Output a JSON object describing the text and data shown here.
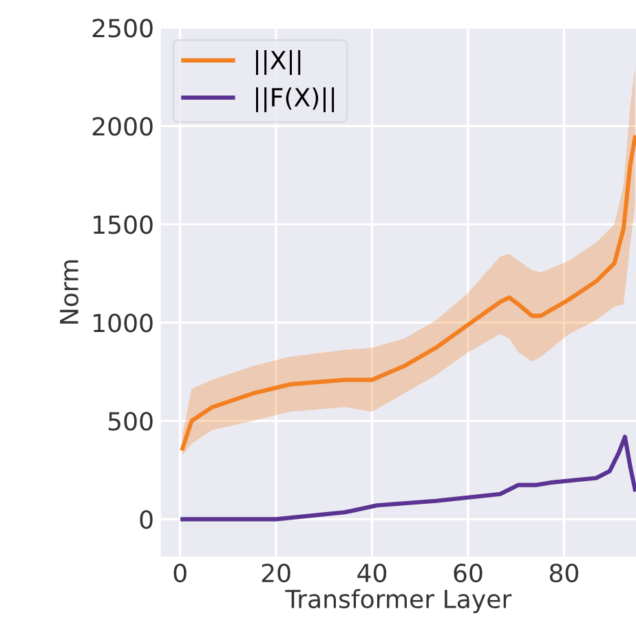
{
  "chart_data": {
    "type": "line",
    "xlabel": "Transformer Layer",
    "ylabel": "Norm",
    "xlim": [
      -4,
      95
    ],
    "xticks": [
      0,
      20,
      40,
      60,
      80
    ],
    "ylim": [
      -190,
      2500
    ],
    "yticks": [
      0,
      500,
      1000,
      1500,
      2000,
      2500
    ],
    "grid": true,
    "legend": "top left",
    "series": [
      {
        "name": "||X||",
        "color": "#f28022",
        "x": [
          0.5,
          2.4,
          6.7,
          15.2,
          22.9,
          34.3,
          40,
          46.7,
          53.3,
          60,
          66.7,
          68.6,
          70.5,
          73.3,
          75.2,
          81,
          86.7,
          90.5,
          92.4,
          93.8,
          94.8
        ],
        "values": [
          360,
          500,
          570,
          640,
          686,
          709,
          709,
          779,
          872,
          989,
          1105,
          1128,
          1093,
          1035,
          1035,
          1117,
          1210,
          1302,
          1477,
          1803,
          1942
        ],
        "lower": [
          326,
          384,
          454,
          500,
          547,
          570,
          547,
          640,
          733,
          849,
          942,
          919,
          849,
          802,
          826,
          942,
          1012,
          1082,
          1093,
          1400,
          1600
        ],
        "upper": [
          430,
          663,
          709,
          779,
          826,
          861,
          872,
          919,
          1012,
          1151,
          1337,
          1349,
          1314,
          1268,
          1256,
          1314,
          1407,
          1500,
          1700,
          2100,
          2300
        ]
      },
      {
        "name": "||F(X)||",
        "color": "#5b3393",
        "x": [
          0.5,
          20,
          34.3,
          41,
          53.3,
          66.7,
          70.5,
          74.3,
          77.1,
          81.9,
          86.7,
          89.5,
          91.4,
          92.7,
          93.8,
          94.8
        ],
        "values": [
          0,
          0,
          35,
          70,
          93,
          128,
          174,
          174,
          186,
          198,
          209,
          244,
          337,
          419,
          267,
          151
        ]
      }
    ]
  }
}
